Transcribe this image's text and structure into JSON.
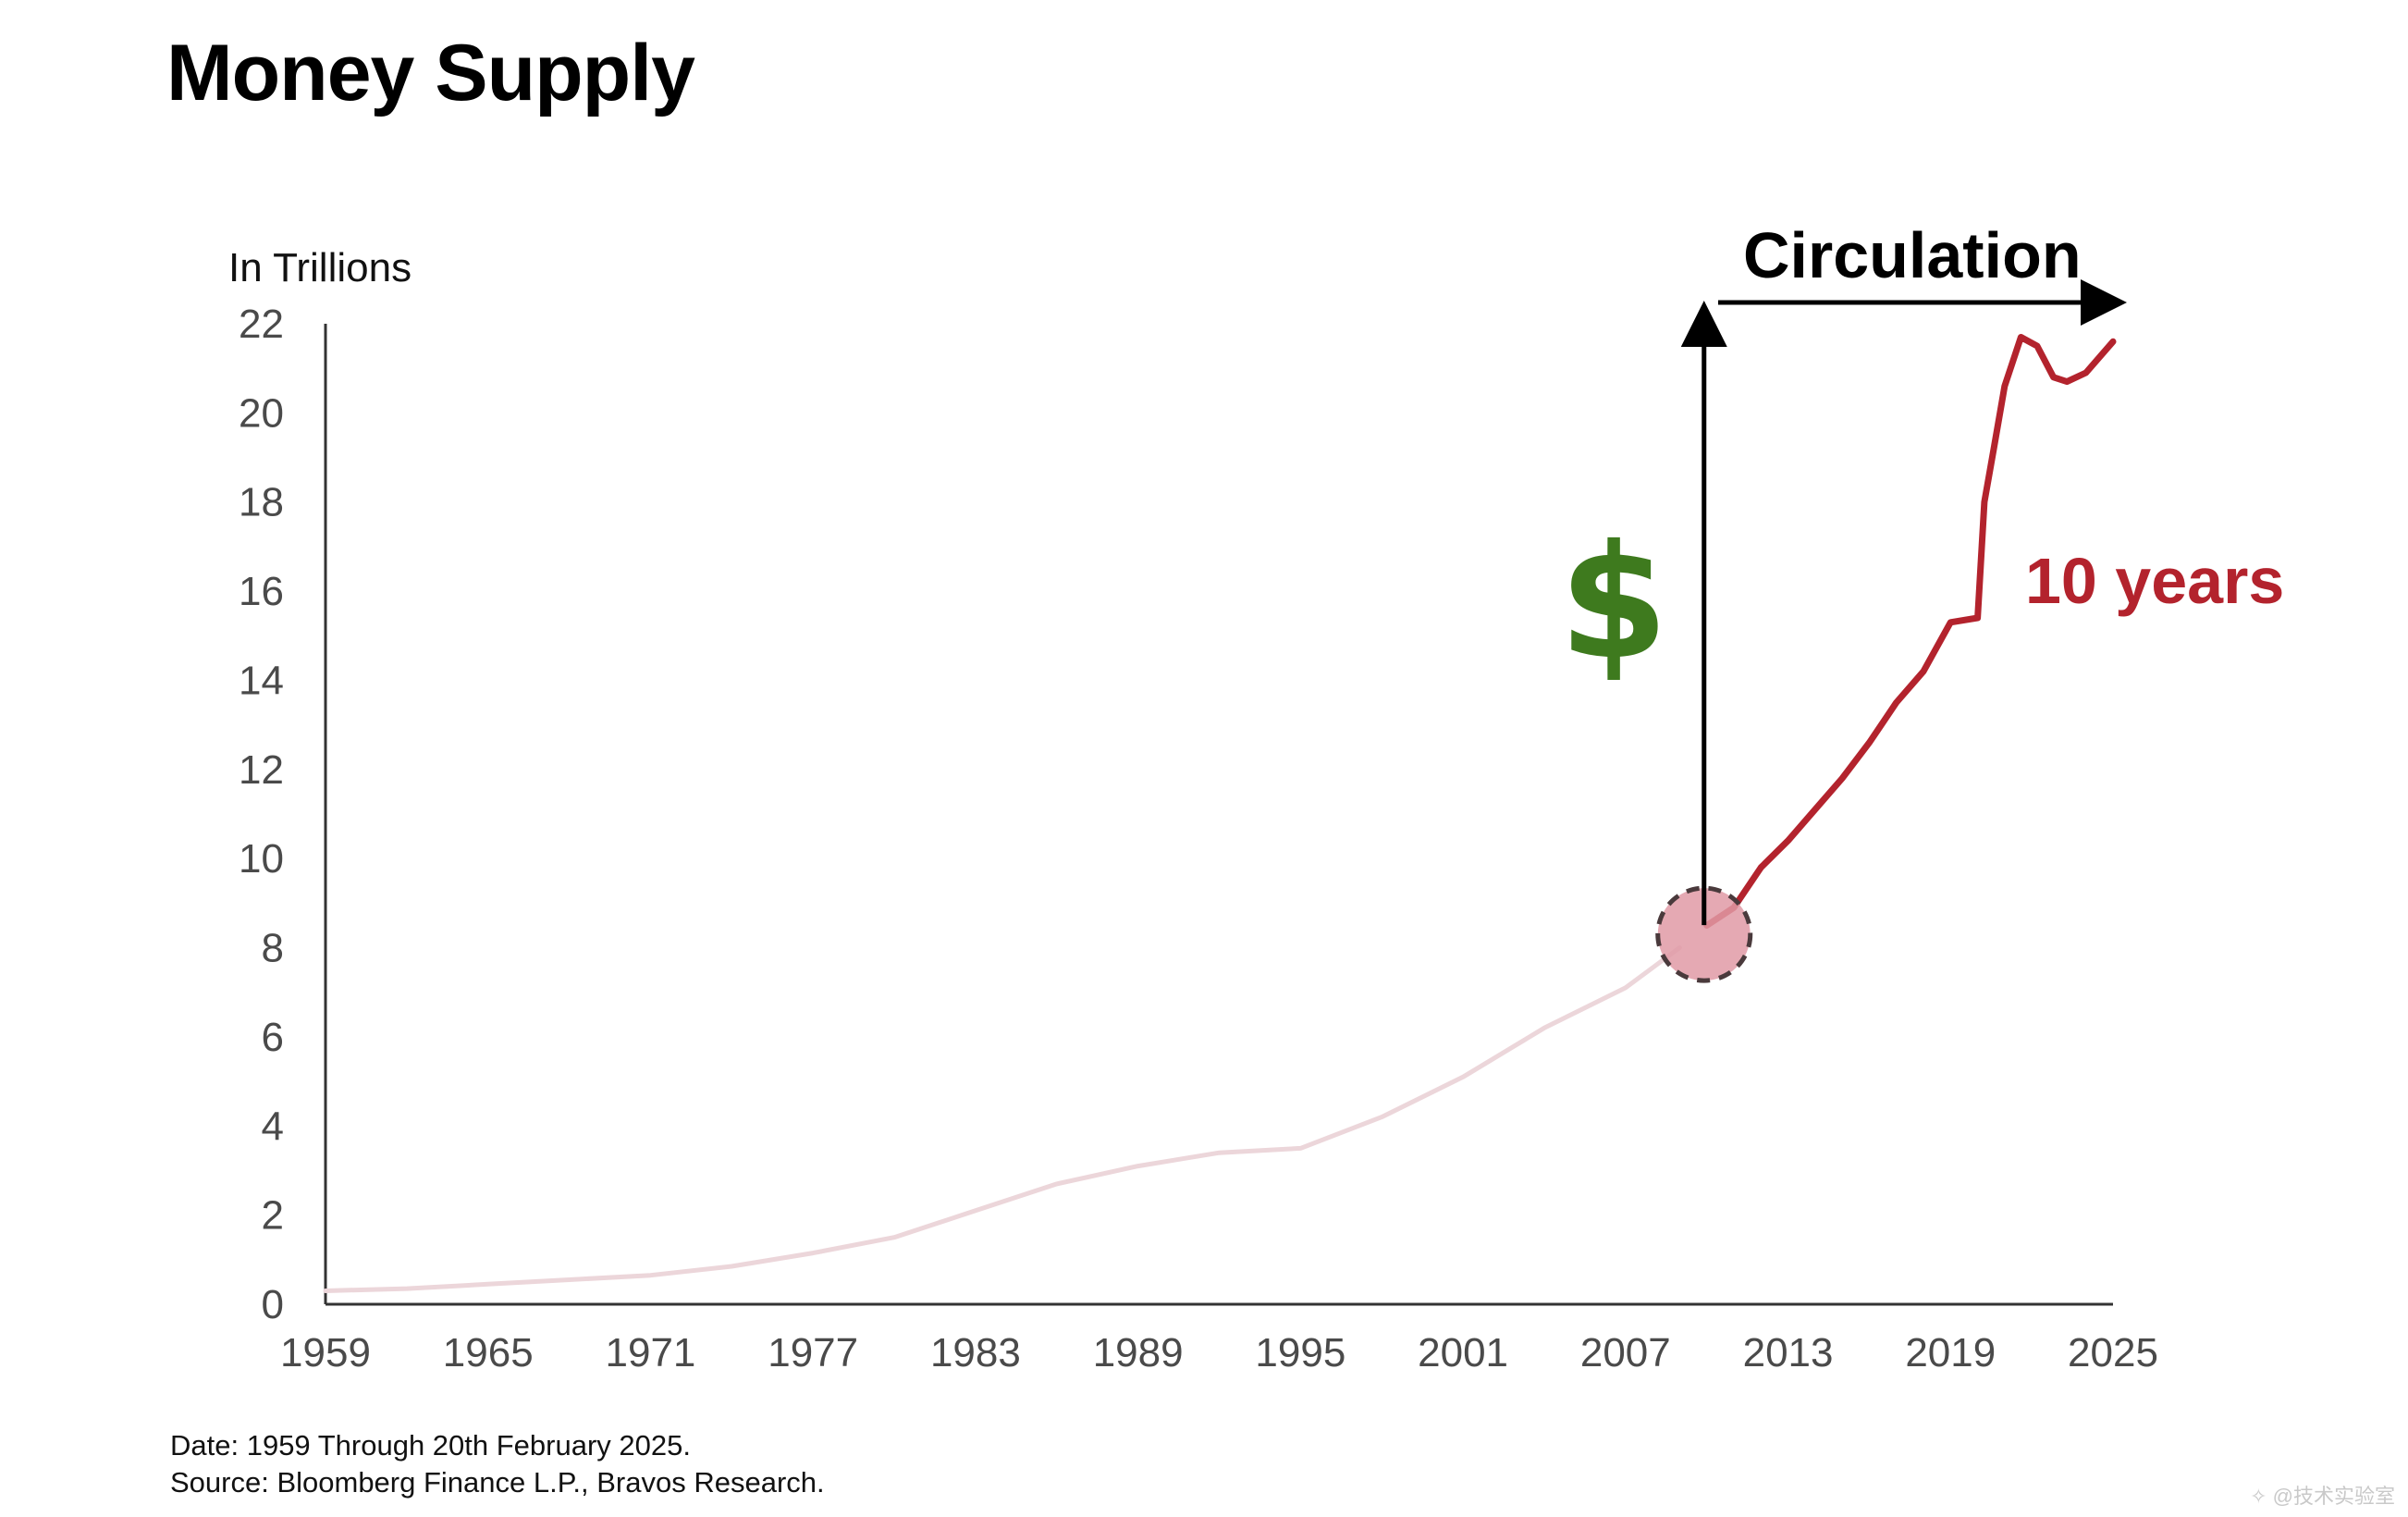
{
  "chart_data": {
    "type": "line",
    "title": "Money Supply",
    "ylabel": "In Trillions",
    "xlabel": "",
    "xlim": [
      1959,
      2025
    ],
    "ylim": [
      0,
      22
    ],
    "x_ticks": [
      "1959",
      "1965",
      "1971",
      "1977",
      "1983",
      "1989",
      "1995",
      "2001",
      "2007",
      "2013",
      "2019",
      "2025"
    ],
    "y_ticks": [
      "0",
      "2",
      "4",
      "6",
      "8",
      "10",
      "12",
      "14",
      "16",
      "18",
      "20",
      "22"
    ],
    "grid": false,
    "legend": "none",
    "series": [
      {
        "color": "#ecd6da",
        "x": [
          1959,
          1962,
          1965,
          1968,
          1971,
          1974,
          1977,
          1980,
          1983,
          1986,
          1989,
          1992,
          1995,
          1998,
          2001,
          2004,
          2007,
          2009
        ],
        "y": [
          0.3,
          0.35,
          0.45,
          0.55,
          0.65,
          0.85,
          1.15,
          1.5,
          2.1,
          2.7,
          3.1,
          3.4,
          3.5,
          4.2,
          5.1,
          6.2,
          7.1,
          8.0
        ]
      },
      {
        "color": "#b3232d",
        "x": [
          2010,
          2011,
          2012,
          2013,
          2014,
          2015,
          2016,
          2017,
          2018,
          2019,
          2020.0,
          2020.25,
          2020.6,
          2021,
          2021.6,
          2022.2,
          2022.8,
          2023.3,
          2024,
          2025
        ],
        "y": [
          8.5,
          8.9,
          9.8,
          10.4,
          11.1,
          11.8,
          12.6,
          13.5,
          14.2,
          15.3,
          15.4,
          18.0,
          19.2,
          20.6,
          21.7,
          21.5,
          20.8,
          20.7,
          20.9,
          21.6
        ]
      }
    ],
    "annotations": {
      "circulation": "Circulation",
      "years": "10 years",
      "dollar": "$"
    }
  },
  "footer": {
    "date_note": "Date: 1959 Through 20th February 2025.",
    "source_note": "Source: Bloomberg Finance L.P., Bravos Research."
  },
  "watermark": "✧ @技术实验室"
}
